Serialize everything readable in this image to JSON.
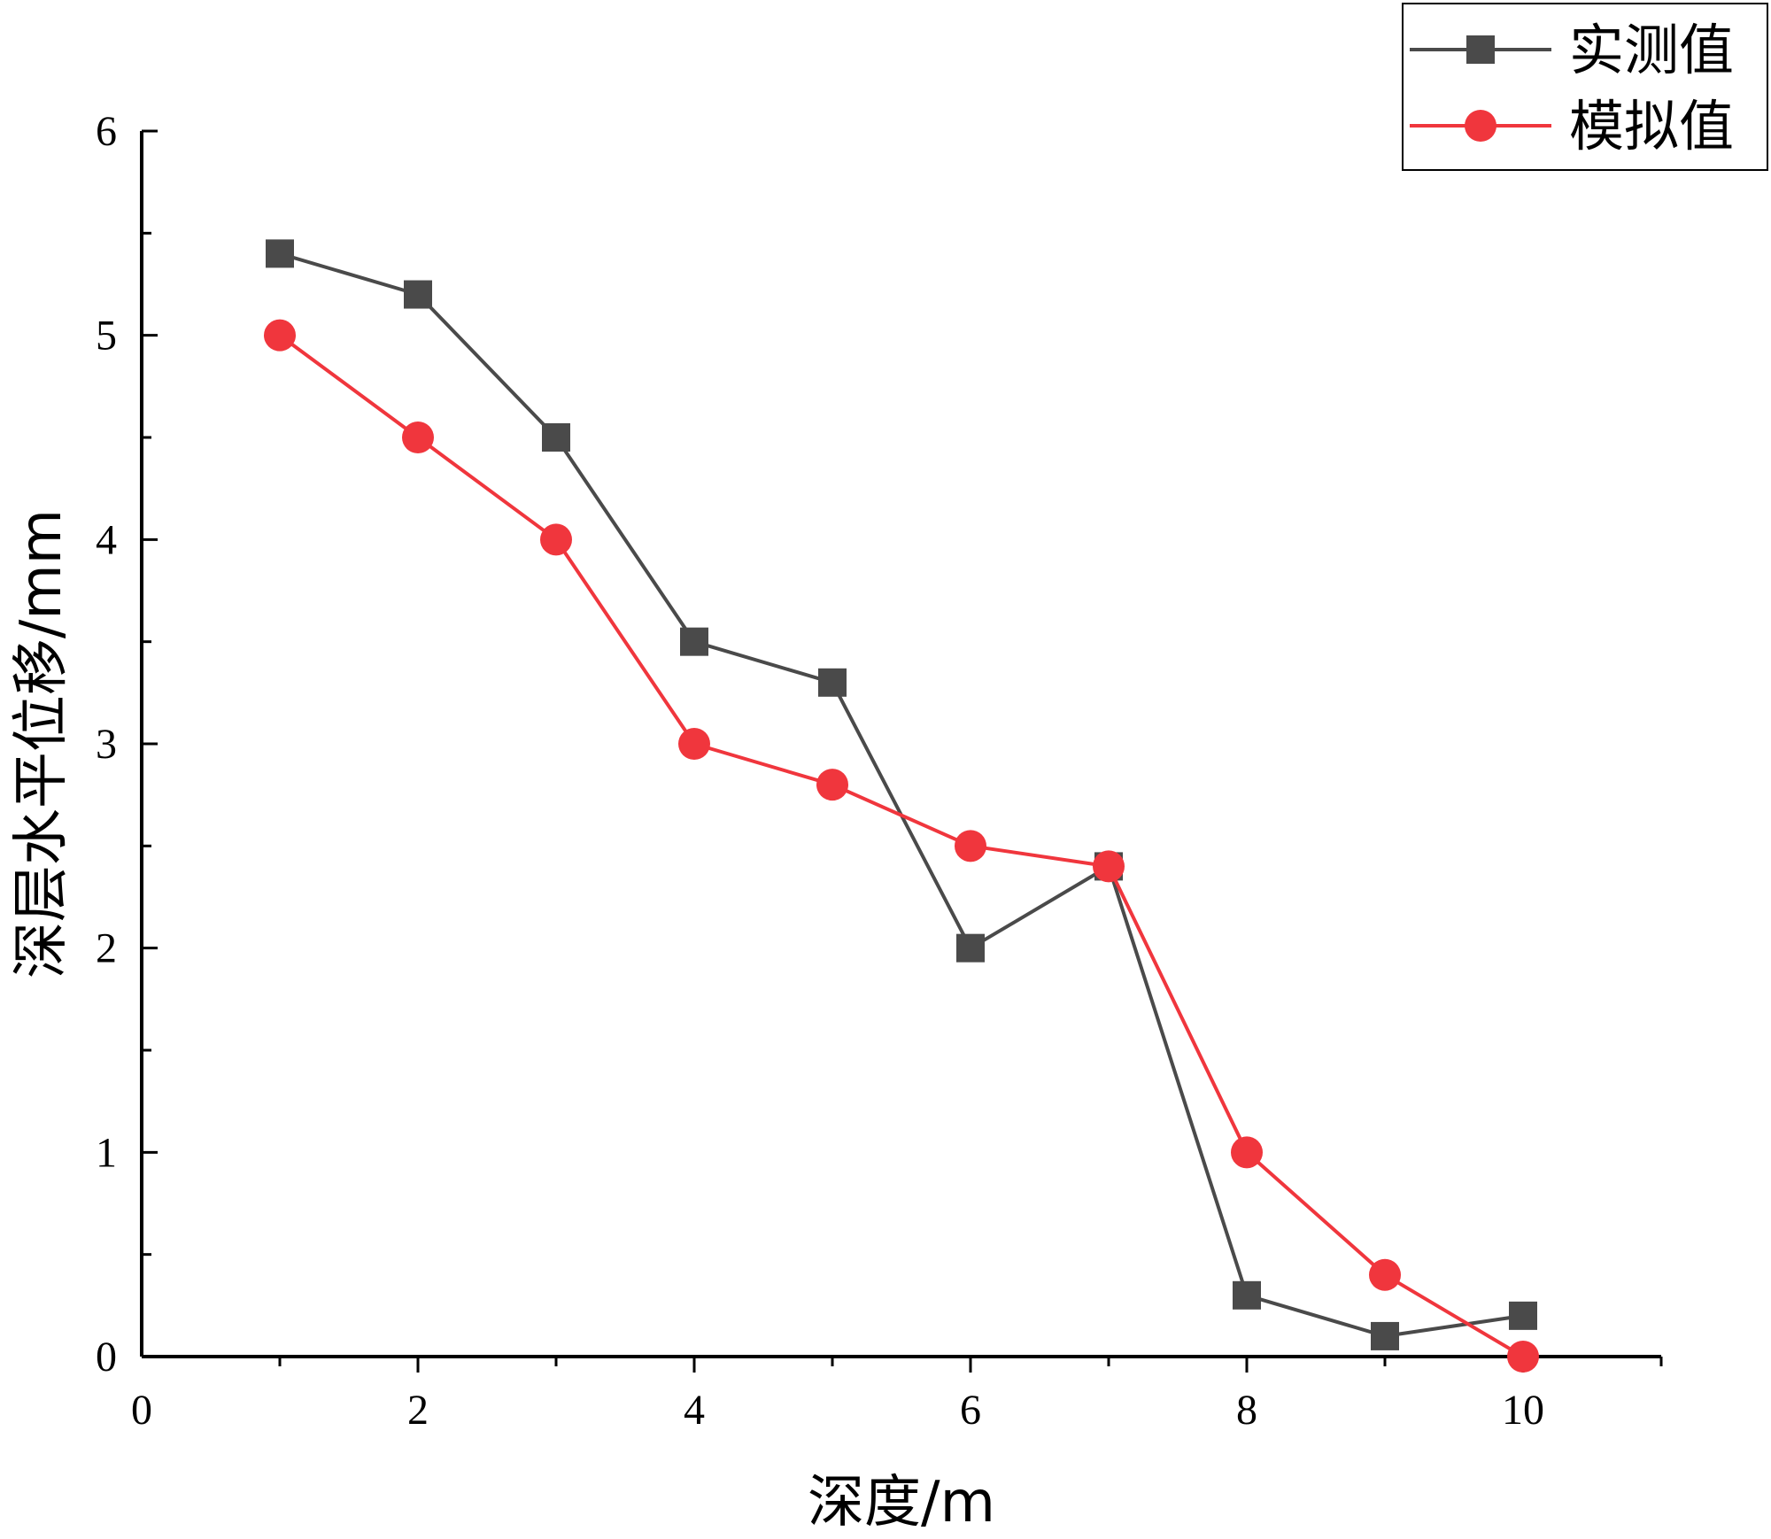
{
  "chart_data": {
    "type": "line",
    "xlabel": "深度/m",
    "ylabel": "深层水平位移/mm",
    "xlim": [
      0,
      11
    ],
    "ylim": [
      0,
      6
    ],
    "x_ticks": [
      "0",
      "2",
      "4",
      "6",
      "8",
      "10"
    ],
    "y_ticks": [
      "0",
      "1",
      "2",
      "3",
      "4",
      "5",
      "6"
    ],
    "grid": false,
    "legend_position": "top-right",
    "x": [
      1,
      2,
      3,
      4,
      5,
      6,
      7,
      8,
      9,
      10
    ],
    "series": [
      {
        "name": "实测值",
        "color": "#4a4a4a",
        "marker": "square",
        "values": [
          5.4,
          5.2,
          4.5,
          3.5,
          3.3,
          2.0,
          2.4,
          0.3,
          0.1,
          0.2
        ]
      },
      {
        "name": "模拟值",
        "color": "#f0363d",
        "marker": "circle",
        "values": [
          5.0,
          4.5,
          4.0,
          3.0,
          2.8,
          2.5,
          2.4,
          1.0,
          0.4,
          0.0
        ]
      }
    ]
  }
}
